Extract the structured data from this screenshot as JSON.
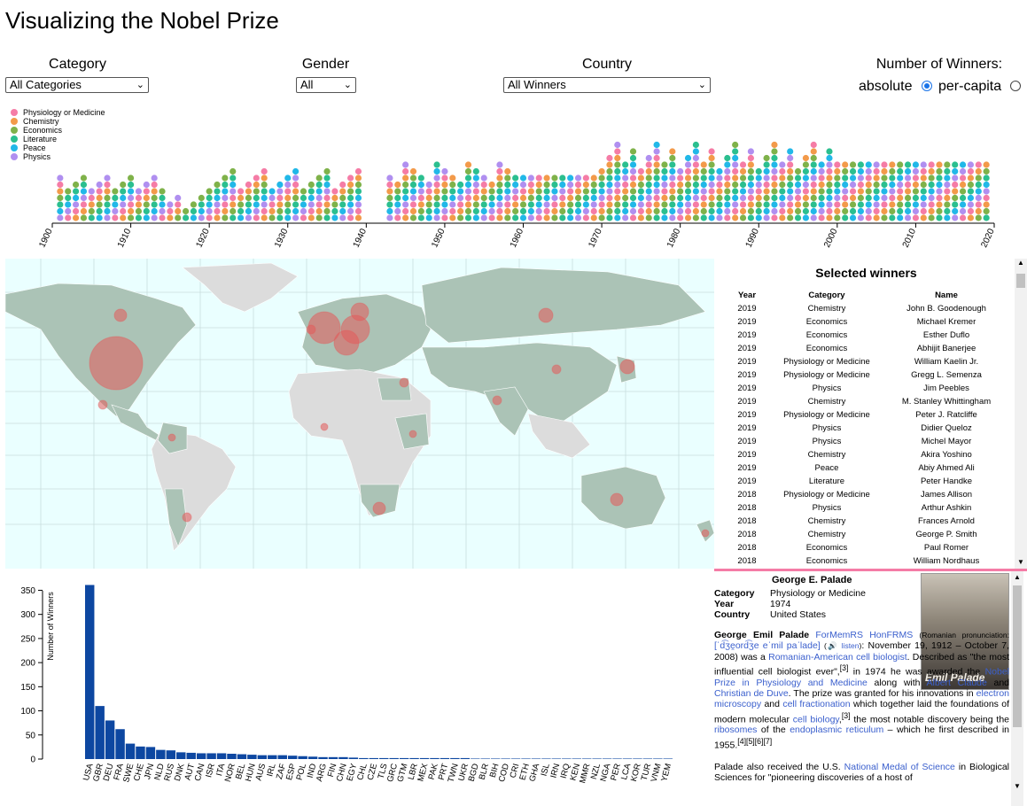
{
  "title": "Visualizing the Nobel Prize",
  "controls": {
    "category": {
      "label": "Category",
      "value": "All Categories"
    },
    "gender": {
      "label": "Gender",
      "value": "All"
    },
    "country": {
      "label": "Country",
      "value": "All Winners"
    },
    "winners": {
      "label": "Number of Winners:",
      "absolute": "absolute",
      "per_capita": "per-capita"
    }
  },
  "legend": [
    {
      "name": "Physiology or Medicine",
      "color": "#f57ca6"
    },
    {
      "name": "Chemistry",
      "color": "#f39a4a"
    },
    {
      "name": "Economics",
      "color": "#7fb24a"
    },
    {
      "name": "Literature",
      "color": "#2bbf8f"
    },
    {
      "name": "Peace",
      "color": "#21b8e8"
    },
    {
      "name": "Physics",
      "color": "#b08ff0"
    }
  ],
  "timeline": {
    "years": [
      "1900",
      "1910",
      "1920",
      "1930",
      "1940",
      "1950",
      "1960",
      "1970",
      "1980",
      "1990",
      "2000",
      "2010",
      "2020"
    ]
  },
  "selected_winners": {
    "title": "Selected winners",
    "headers": [
      "Year",
      "Category",
      "Name"
    ],
    "rows": [
      [
        "2019",
        "Chemistry",
        "John B. Goodenough"
      ],
      [
        "2019",
        "Economics",
        "Michael Kremer"
      ],
      [
        "2019",
        "Economics",
        "Esther Duflo"
      ],
      [
        "2019",
        "Economics",
        "Abhijit Banerjee"
      ],
      [
        "2019",
        "Physiology or Medicine",
        "William Kaelin Jr."
      ],
      [
        "2019",
        "Physiology or Medicine",
        "Gregg L. Semenza"
      ],
      [
        "2019",
        "Physics",
        "Jim Peebles"
      ],
      [
        "2019",
        "Chemistry",
        "M. Stanley Whittingham"
      ],
      [
        "2019",
        "Physiology or Medicine",
        "Peter J. Ratcliffe"
      ],
      [
        "2019",
        "Physics",
        "Didier Queloz"
      ],
      [
        "2019",
        "Physics",
        "Michel Mayor"
      ],
      [
        "2019",
        "Chemistry",
        "Akira Yoshino"
      ],
      [
        "2019",
        "Peace",
        "Abiy Ahmed Ali"
      ],
      [
        "2019",
        "Literature",
        "Peter Handke"
      ],
      [
        "2018",
        "Physiology or Medicine",
        "James Allison"
      ],
      [
        "2018",
        "Physics",
        "Arthur Ashkin"
      ],
      [
        "2018",
        "Chemistry",
        "Frances Arnold"
      ],
      [
        "2018",
        "Chemistry",
        "George P. Smith"
      ],
      [
        "2018",
        "Economics",
        "Paul Romer"
      ],
      [
        "2018",
        "Economics",
        "William Nordhaus"
      ]
    ]
  },
  "detail": {
    "name": "George E. Palade",
    "category_label": "Category",
    "category": "Physiology or Medicine",
    "year_label": "Year",
    "year": "1974",
    "country_label": "Country",
    "country": "United States",
    "photo_caption": "Emil Palade"
  },
  "chart_data": {
    "type": "bar",
    "ylabel": "Number of Winners",
    "ylim": [
      0,
      360
    ],
    "yticks": [
      0,
      50,
      100,
      150,
      200,
      250,
      300,
      350
    ],
    "categories": [
      "USA",
      "GBR",
      "DEU",
      "FRA",
      "SWE",
      "CHE",
      "JPN",
      "NLD",
      "RUS",
      "DNK",
      "AUT",
      "CAN",
      "ISR",
      "ITA",
      "NOR",
      "BEL",
      "HUN",
      "AUS",
      "IRL",
      "ZAF",
      "ESP",
      "POL",
      "IND",
      "ARG",
      "FIN",
      "CHN",
      "EGY",
      "CHL",
      "CZE",
      "TLS",
      "GRC",
      "GTM",
      "LBR",
      "MEX",
      "PAK",
      "PRT",
      "TWN",
      "UKR",
      "BGD",
      "BLR",
      "BIH",
      "COD",
      "CRI",
      "ETH",
      "GHA",
      "ISL",
      "IRN",
      "IRQ",
      "KEN",
      "MMR",
      "NZL",
      "NGA",
      "PER",
      "LCA",
      "KOR",
      "TUR",
      "VNM",
      "YEM"
    ],
    "values": [
      361,
      110,
      80,
      62,
      32,
      26,
      25,
      19,
      18,
      14,
      13,
      12,
      12,
      12,
      11,
      10,
      9,
      8,
      8,
      8,
      7,
      6,
      5,
      4,
      4,
      4,
      3,
      2,
      2,
      2,
      2,
      2,
      2,
      2,
      2,
      2,
      2,
      2,
      1,
      1,
      1,
      1,
      1,
      1,
      1,
      1,
      1,
      1,
      1,
      1,
      1,
      1,
      1,
      1,
      1,
      1,
      1,
      1
    ]
  }
}
